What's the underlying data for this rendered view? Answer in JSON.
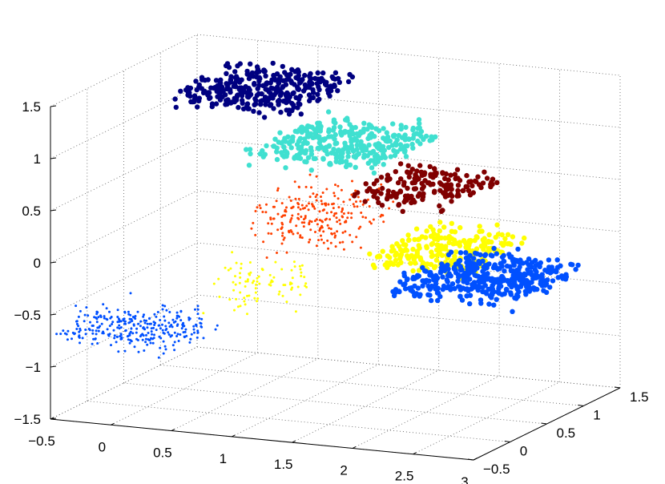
{
  "chart_data": {
    "type": "scatter",
    "title": "",
    "xlabel": "",
    "ylabel": "",
    "zlabel": "",
    "grid": true,
    "xlim": [
      -0.5,
      3
    ],
    "ylim": [
      -0.5,
      1.5
    ],
    "zlim": [
      -1.5,
      1.5
    ],
    "x_ticks": [
      "−0.5",
      "0",
      "0.5",
      "1",
      "1.5",
      "2",
      "2.5",
      "3"
    ],
    "y_ticks": [
      "−0.5",
      "0",
      "0.5",
      "1",
      "1.5"
    ],
    "z_ticks": [
      "−1.5",
      "−1",
      "−0.5",
      "0",
      "0.5",
      "1",
      "1.5"
    ],
    "clusters": [
      {
        "color": "#000080",
        "center": [
          0.35,
          1.0,
          1.25
        ],
        "spread": [
          0.55,
          0.5,
          0.1
        ],
        "count": 330,
        "marker": "large"
      },
      {
        "color": "#40e0d0",
        "center": [
          1.1,
          0.85,
          0.85
        ],
        "spread": [
          0.6,
          0.55,
          0.1
        ],
        "count": 330,
        "marker": "large"
      },
      {
        "color": "#800000",
        "center": [
          1.85,
          0.75,
          0.55
        ],
        "spread": [
          0.45,
          0.45,
          0.1
        ],
        "count": 170,
        "marker": "large"
      },
      {
        "color": "#ffff00",
        "center": [
          2.2,
          0.45,
          0.1
        ],
        "spread": [
          0.45,
          0.5,
          0.1
        ],
        "count": 230,
        "marker": "large"
      },
      {
        "color": "#0050ff",
        "center": [
          2.65,
          0.25,
          -0.05
        ],
        "spread": [
          0.55,
          0.55,
          0.1
        ],
        "count": 420,
        "marker": "large"
      },
      {
        "color": "#ff4000",
        "center": [
          1.25,
          0.3,
          0.35
        ],
        "spread": [
          0.45,
          0.45,
          0.25
        ],
        "count": 230,
        "marker": "small"
      },
      {
        "color": "#ffff00",
        "center": [
          0.85,
          0.15,
          -0.25
        ],
        "spread": [
          0.4,
          0.25,
          0.25
        ],
        "count": 90,
        "marker": "small"
      },
      {
        "color": "#0050ff",
        "center": [
          0.05,
          -0.25,
          -0.65
        ],
        "spread": [
          0.55,
          0.35,
          0.15
        ],
        "count": 300,
        "marker": "small"
      }
    ]
  }
}
